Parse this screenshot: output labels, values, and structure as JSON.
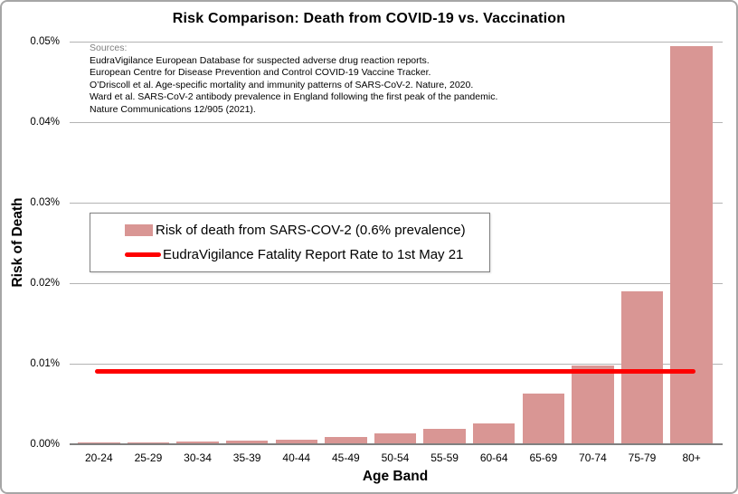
{
  "chart_data": {
    "type": "bar",
    "title": "Risk Comparison: Death from COVID-19 vs. Vaccination",
    "xlabel": "Age Band",
    "ylabel": "Risk of Death",
    "categories": [
      "20-24",
      "25-29",
      "30-34",
      "35-39",
      "40-44",
      "45-49",
      "50-54",
      "55-59",
      "60-64",
      "65-69",
      "70-74",
      "75-79",
      "80+"
    ],
    "series": [
      {
        "name": "Risk of death from SARS-COV-2 (0.6% prevalence)",
        "type": "bar",
        "color": "#d99694",
        "values_pct": [
          0.0002,
          0.00025,
          0.0003,
          0.0004,
          0.0006,
          0.0009,
          0.0013,
          0.0019,
          0.0026,
          0.0063,
          0.0098,
          0.019,
          0.0494
        ]
      },
      {
        "name": "EudraVigilance Fatality Report Rate to 1st May 21",
        "type": "hline",
        "color": "#fe0000",
        "value_pct": 0.009
      }
    ],
    "y_ticks": [
      "0.00%",
      "0.01%",
      "0.02%",
      "0.03%",
      "0.04%",
      "0.05%"
    ],
    "ylim_pct": [
      0,
      0.05
    ],
    "grid": true,
    "legend_position": "middle-left"
  },
  "legend": {
    "items": [
      {
        "label": "Risk of death from SARS-COV-2 (0.6% prevalence)",
        "swatch": "bar",
        "color": "#d99694"
      },
      {
        "label": "EudraVigilance Fatality Report Rate to 1st May 21",
        "swatch": "line",
        "color": "#fe0000"
      }
    ]
  },
  "sources": {
    "heading": "Sources:",
    "lines": [
      "EudraVigilance European Database for suspected adverse drug reaction reports.",
      "European Centre for Disease Prevention and Control COVID-19 Vaccine Tracker.",
      "O’Driscoll et al. Age-specific mortality and immunity patterns of SARS-CoV-2. Nature, 2020.",
      "Ward et al. SARS-CoV-2 antibody prevalence in England following the first peak of the pandemic.",
      "Nature Communications 12/905 (2021)."
    ]
  },
  "colors": {
    "bar_fill": "#d99694",
    "reference_line": "#fe0000",
    "gridline": "#b3b3b3",
    "axis_line": "#808080",
    "frame_border": "#a6a6a6",
    "sources_heading": "#7f7f7f"
  }
}
